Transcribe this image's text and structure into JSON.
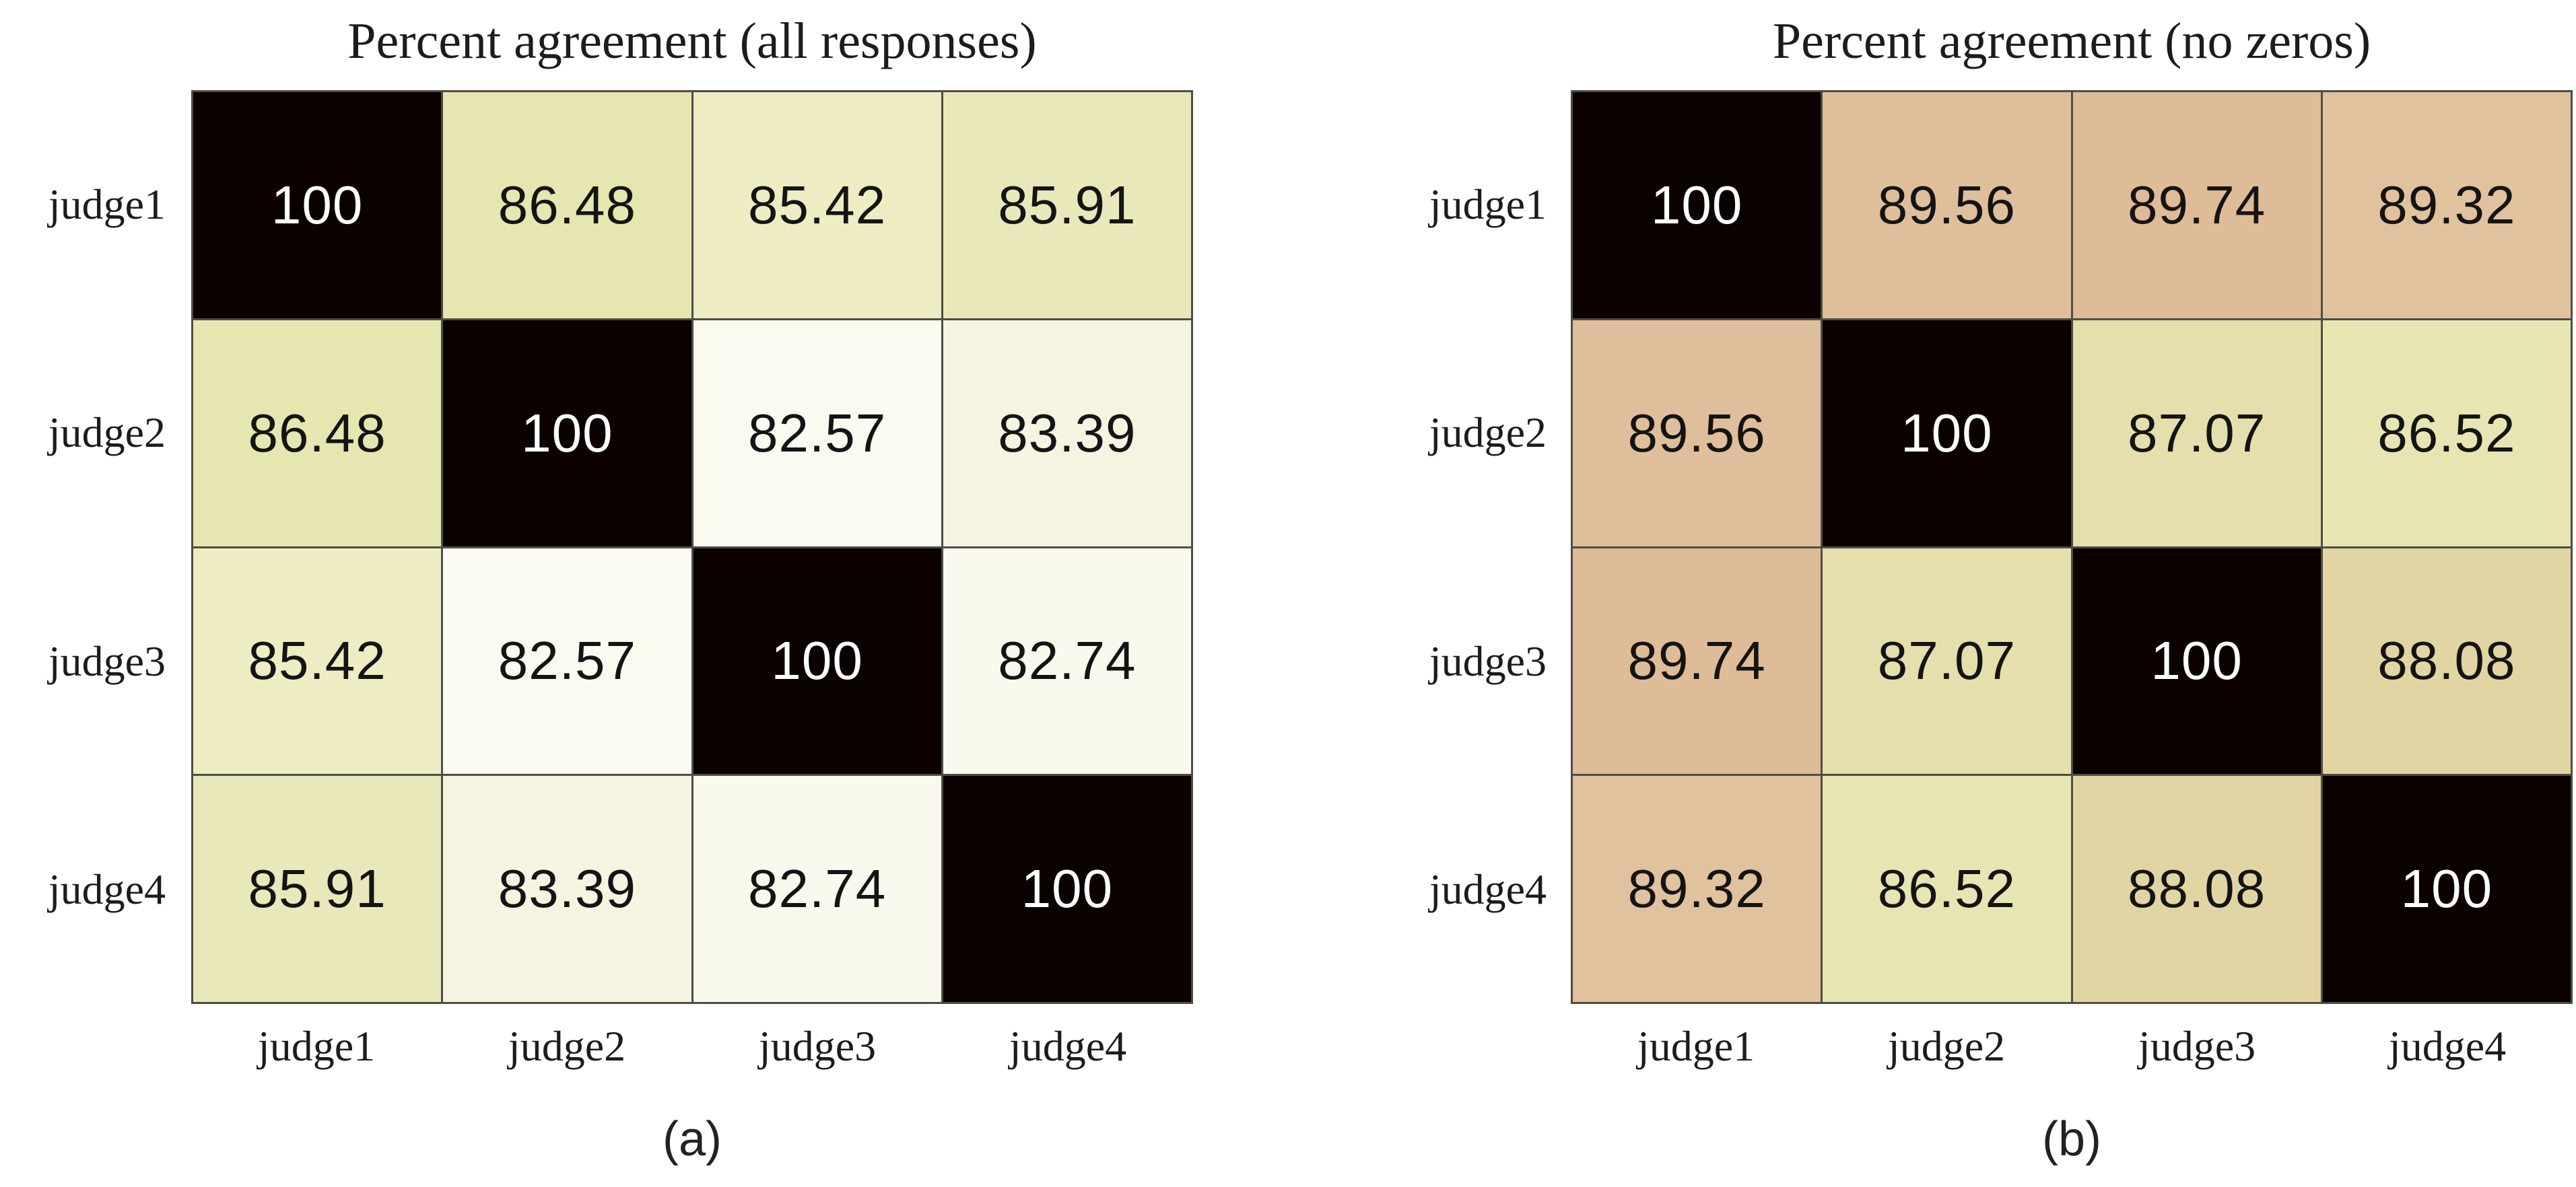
{
  "figure": {
    "background": "#ffffff",
    "grid_line_color": "#4d4d45",
    "diagonal_color": "#0b0200",
    "label_color": "#1c1c1c",
    "cell_text_dark": "#141414",
    "cell_text_light": "#ffffff"
  },
  "panels": [
    {
      "id": "a",
      "title": "Percent agreement (all responses)",
      "caption": "(a)",
      "row_labels": [
        "judge1",
        "judge2",
        "judge3",
        "judge4"
      ],
      "col_labels": [
        "judge1",
        "judge2",
        "judge3",
        "judge4"
      ],
      "cells": [
        [
          {
            "v": "100",
            "bg": "#0b0200",
            "fg": "#ffffff"
          },
          {
            "v": "86.48",
            "bg": "#e6e6b0",
            "fg": "#141414"
          },
          {
            "v": "85.42",
            "bg": "#edecc3",
            "fg": "#141414"
          },
          {
            "v": "85.91",
            "bg": "#e9e8ba",
            "fg": "#141414"
          }
        ],
        [
          {
            "v": "86.48",
            "bg": "#e6e6b0",
            "fg": "#141414"
          },
          {
            "v": "100",
            "bg": "#0b0200",
            "fg": "#ffffff"
          },
          {
            "v": "82.57",
            "bg": "#fafaf0",
            "fg": "#141414"
          },
          {
            "v": "83.39",
            "bg": "#f5f4e1",
            "fg": "#141414"
          }
        ],
        [
          {
            "v": "85.42",
            "bg": "#edecc3",
            "fg": "#141414"
          },
          {
            "v": "82.57",
            "bg": "#fafaf0",
            "fg": "#141414"
          },
          {
            "v": "100",
            "bg": "#0b0200",
            "fg": "#ffffff"
          },
          {
            "v": "82.74",
            "bg": "#faf9ee",
            "fg": "#141414"
          }
        ],
        [
          {
            "v": "85.91",
            "bg": "#e9e8ba",
            "fg": "#141414"
          },
          {
            "v": "83.39",
            "bg": "#f5f4e1",
            "fg": "#141414"
          },
          {
            "v": "82.74",
            "bg": "#faf9ee",
            "fg": "#141414"
          },
          {
            "v": "100",
            "bg": "#0b0200",
            "fg": "#ffffff"
          }
        ]
      ]
    },
    {
      "id": "b",
      "title": "Percent agreement (no zeros)",
      "caption": "(b)",
      "row_labels": [
        "judge1",
        "judge2",
        "judge3",
        "judge4"
      ],
      "col_labels": [
        "judge1",
        "judge2",
        "judge3",
        "judge4"
      ],
      "cells": [
        [
          {
            "v": "100",
            "bg": "#0b0200",
            "fg": "#ffffff"
          },
          {
            "v": "89.56",
            "bg": "#dfbf9b",
            "fg": "#141414"
          },
          {
            "v": "89.74",
            "bg": "#debc97",
            "fg": "#141414"
          },
          {
            "v": "89.32",
            "bg": "#e0c29e",
            "fg": "#141414"
          }
        ],
        [
          {
            "v": "89.56",
            "bg": "#dfbf9b",
            "fg": "#141414"
          },
          {
            "v": "100",
            "bg": "#0b0200",
            "fg": "#ffffff"
          },
          {
            "v": "87.07",
            "bg": "#e4dfac",
            "fg": "#141414"
          },
          {
            "v": "86.52",
            "bg": "#e7e5b2",
            "fg": "#141414"
          }
        ],
        [
          {
            "v": "89.74",
            "bg": "#debc97",
            "fg": "#141414"
          },
          {
            "v": "87.07",
            "bg": "#e4dfac",
            "fg": "#141414"
          },
          {
            "v": "100",
            "bg": "#0b0200",
            "fg": "#ffffff"
          },
          {
            "v": "88.08",
            "bg": "#e2d5a4",
            "fg": "#141414"
          }
        ],
        [
          {
            "v": "89.32",
            "bg": "#e0c29e",
            "fg": "#141414"
          },
          {
            "v": "86.52",
            "bg": "#e7e5b2",
            "fg": "#141414"
          },
          {
            "v": "88.08",
            "bg": "#e2d5a4",
            "fg": "#141414"
          },
          {
            "v": "100",
            "bg": "#0b0200",
            "fg": "#ffffff"
          }
        ]
      ]
    }
  ],
  "chart_data": [
    {
      "type": "heatmap",
      "title": "Percent agreement (all responses)",
      "caption": "(a)",
      "x_categories": [
        "judge1",
        "judge2",
        "judge3",
        "judge4"
      ],
      "y_categories": [
        "judge1",
        "judge2",
        "judge3",
        "judge4"
      ],
      "values": [
        [
          100,
          86.48,
          85.42,
          85.91
        ],
        [
          86.48,
          100,
          82.57,
          83.39
        ],
        [
          85.42,
          82.57,
          100,
          82.74
        ],
        [
          85.91,
          83.39,
          82.74,
          100
        ]
      ],
      "value_unit": "percent",
      "colormap": "light yellow (low) to tan (high), black at 100",
      "grid": "on",
      "legend": "none"
    },
    {
      "type": "heatmap",
      "title": "Percent agreement (no zeros)",
      "caption": "(b)",
      "x_categories": [
        "judge1",
        "judge2",
        "judge3",
        "judge4"
      ],
      "y_categories": [
        "judge1",
        "judge2",
        "judge3",
        "judge4"
      ],
      "values": [
        [
          100,
          89.56,
          89.74,
          89.32
        ],
        [
          89.56,
          100,
          87.07,
          86.52
        ],
        [
          89.74,
          87.07,
          100,
          88.08
        ],
        [
          89.32,
          86.52,
          88.08,
          100
        ]
      ],
      "value_unit": "percent",
      "colormap": "light yellow (low) to tan (high), black at 100",
      "grid": "on",
      "legend": "none"
    }
  ]
}
